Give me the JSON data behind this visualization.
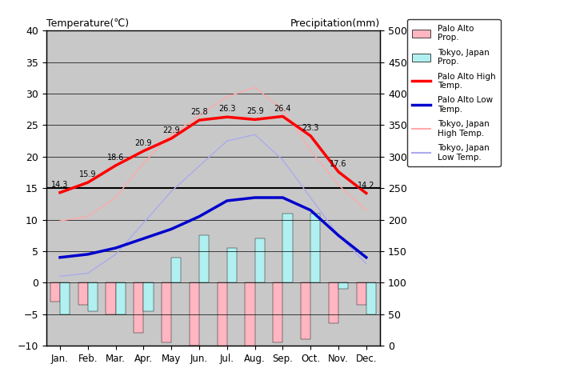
{
  "months": [
    "Jan.",
    "Feb.",
    "Mar.",
    "Apr.",
    "May",
    "Jun.",
    "Jul.",
    "Aug.",
    "Sep.",
    "Oct.",
    "Nov.",
    "Dec."
  ],
  "palo_alto_high": [
    14.3,
    15.9,
    18.6,
    20.9,
    22.9,
    25.8,
    26.3,
    25.9,
    26.4,
    23.3,
    17.6,
    14.2
  ],
  "palo_alto_low": [
    4.0,
    4.5,
    5.5,
    7.0,
    8.5,
    10.5,
    13.0,
    13.5,
    13.5,
    11.5,
    7.5,
    4.0
  ],
  "tokyo_high": [
    9.8,
    10.5,
    13.5,
    19.0,
    23.5,
    26.5,
    29.5,
    31.0,
    27.5,
    21.0,
    15.5,
    11.5
  ],
  "tokyo_low": [
    1.0,
    1.5,
    4.5,
    9.5,
    14.5,
    18.5,
    22.5,
    23.5,
    19.5,
    13.5,
    7.5,
    3.0
  ],
  "palo_alto_precip_temp": [
    -3.0,
    -3.5,
    -5.0,
    -8.0,
    -9.5,
    -10.0,
    -10.5,
    -10.5,
    -9.5,
    -9.0,
    -6.5,
    -3.5
  ],
  "tokyo_precip_temp": [
    -5.0,
    -4.5,
    -5.0,
    -4.5,
    4.0,
    7.5,
    5.5,
    7.0,
    11.0,
    11.0,
    -1.0,
    -5.0
  ],
  "temp_ylim": [
    -10,
    40
  ],
  "precip_ylim": [
    0,
    500
  ],
  "plot_bg_color": "#c8c8c8",
  "palo_alto_high_color": "#ff0000",
  "palo_alto_low_color": "#0000cd",
  "tokyo_high_color": "#ffaaaa",
  "tokyo_low_color": "#aaaaee",
  "palo_alto_precip_color": "#ffb6c1",
  "tokyo_precip_color": "#b0f0f0",
  "title_left": "Temperature(℃)",
  "title_right": "Precipitation(mm)"
}
